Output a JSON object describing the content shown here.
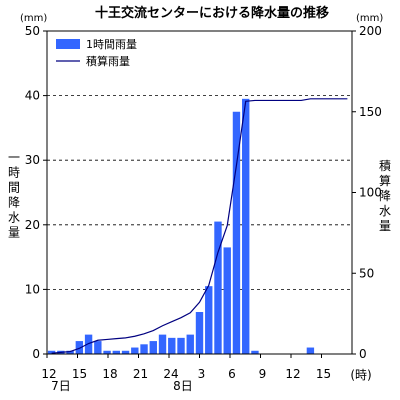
{
  "chart_data": {
    "type": "bar",
    "title": "十王交流センターにおける降水量の推移",
    "y_left": {
      "label": "一時間降水量",
      "unit": "(mm)",
      "range": [
        0,
        50
      ],
      "ticks": [
        0,
        10,
        20,
        30,
        40,
        50
      ]
    },
    "y_right": {
      "label": "積算降水量",
      "unit": "(mm)",
      "range": [
        0,
        200
      ],
      "ticks": [
        0,
        50,
        100,
        150,
        200
      ]
    },
    "x": {
      "ticks": [
        "12",
        "15",
        "18",
        "21",
        "24",
        "3",
        "6",
        "9",
        "12",
        "15"
      ],
      "unit_suffix": "(時)",
      "dates": [
        {
          "label": "7日",
          "under_tick": 0
        },
        {
          "label": "8日",
          "under_tick": 4
        }
      ]
    },
    "grid": "dashed-horizontal",
    "legend_position": "top-left",
    "series": [
      {
        "name": "1時間雨量",
        "kind": "bar",
        "axis": "left",
        "color": "#3366ff",
        "values": [
          0.5,
          0.5,
          0.5,
          2,
          3,
          2,
          0.5,
          0.5,
          0.5,
          1,
          1.5,
          2,
          3,
          2.5,
          2.5,
          3,
          6.5,
          10.5,
          20.5,
          16.5,
          37.5,
          39.5,
          0.5,
          0,
          0,
          0,
          0,
          0,
          1,
          0,
          0,
          0,
          0
        ]
      },
      {
        "name": "積算雨量",
        "kind": "line",
        "axis": "right",
        "color": "#000080",
        "values": [
          0.5,
          1,
          1.5,
          3.5,
          6.5,
          8.5,
          9,
          9.5,
          10,
          11,
          12.5,
          14.5,
          17.5,
          20,
          22.5,
          25.5,
          32,
          42.5,
          63,
          79.5,
          117,
          156.5,
          157,
          157,
          157,
          157,
          157,
          157,
          158,
          158,
          158,
          158,
          158
        ]
      }
    ]
  }
}
